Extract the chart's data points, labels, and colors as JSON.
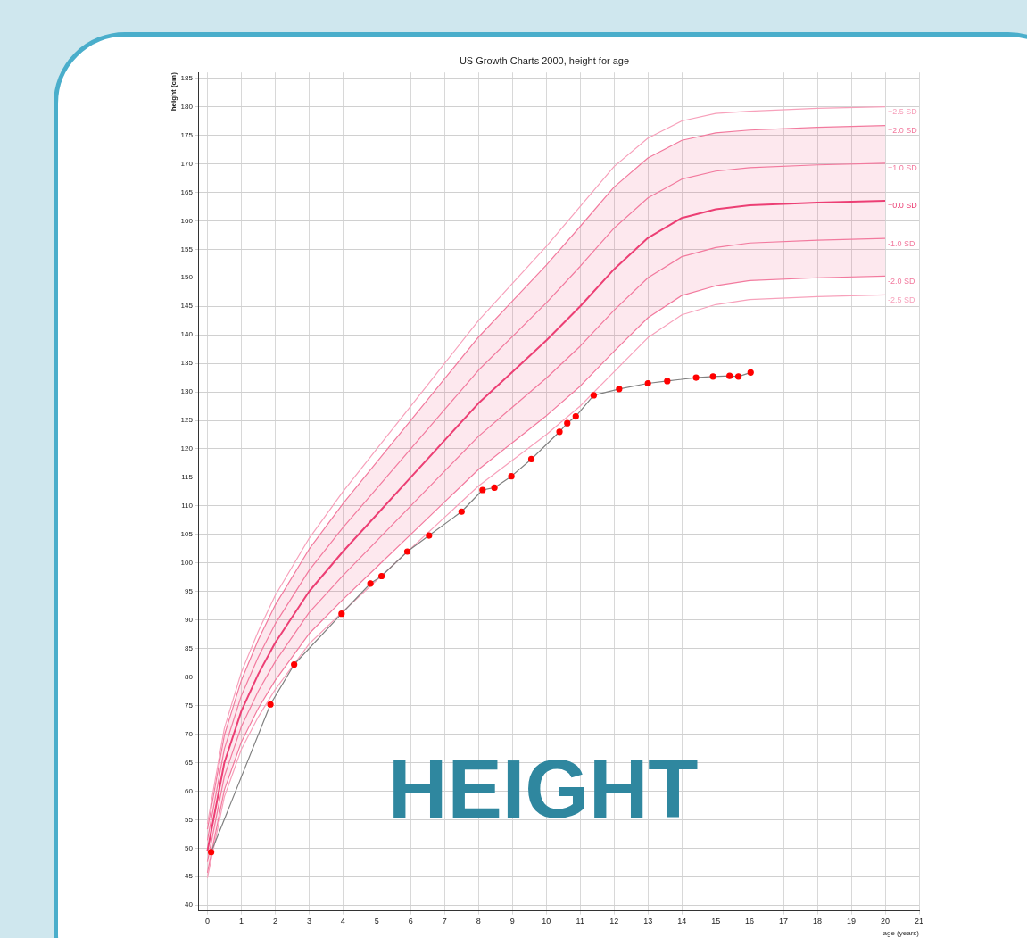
{
  "chart_data": {
    "type": "line",
    "title": "US Growth Charts 2000, height for age",
    "xlabel": "age (years)",
    "ylabel": "height (cm)",
    "annotations": [
      "HEIGHT"
    ],
    "xlim": [
      -0.25,
      21
    ],
    "ylim": [
      39,
      186
    ],
    "xticks": [
      0,
      1,
      2,
      3,
      4,
      5,
      6,
      7,
      8,
      9,
      10,
      11,
      12,
      13,
      14,
      15,
      16,
      17,
      18,
      19,
      20,
      21
    ],
    "yticks": [
      40,
      45,
      50,
      55,
      60,
      65,
      70,
      75,
      80,
      85,
      90,
      95,
      100,
      105,
      110,
      115,
      120,
      125,
      130,
      135,
      140,
      145,
      150,
      155,
      160,
      165,
      170,
      175,
      180,
      185
    ],
    "grid": true,
    "legend": false,
    "series": [
      {
        "name": "+2.5 SD",
        "color": "#f7a1bb",
        "marker": "none",
        "x": [
          0,
          0.5,
          1,
          1.5,
          2,
          3,
          4,
          5,
          6,
          7,
          8,
          9,
          10,
          11,
          12,
          13,
          14,
          15,
          16,
          18,
          20
        ],
        "values": [
          54.3,
          71,
          80.8,
          88,
          94.3,
          104.3,
          112.5,
          120,
          127.5,
          135,
          142.5,
          149,
          155.5,
          162.5,
          169.5,
          174.5,
          177.5,
          178.8,
          179.2,
          179.7,
          180
        ]
      },
      {
        "name": "+2.0 SD",
        "color": "#f27a9e",
        "marker": "none",
        "x": [
          0,
          0.5,
          1,
          1.5,
          2,
          3,
          4,
          5,
          6,
          7,
          8,
          9,
          10,
          11,
          12,
          13,
          14,
          15,
          16,
          18,
          20
        ],
        "values": [
          53.3,
          69.8,
          79.4,
          86.5,
          92.6,
          102.4,
          110.4,
          117.7,
          125,
          132.3,
          139.6,
          145.9,
          152.2,
          159,
          165.9,
          171,
          174.1,
          175.4,
          175.9,
          176.4,
          176.7
        ]
      },
      {
        "name": "+1.0 SD",
        "color": "#f27a9e",
        "marker": "none",
        "x": [
          0,
          0.5,
          1,
          1.5,
          2,
          3,
          4,
          5,
          6,
          7,
          8,
          9,
          10,
          11,
          12,
          13,
          14,
          15,
          16,
          18,
          20
        ],
        "values": [
          51.4,
          67.4,
          76.7,
          83.5,
          89.3,
          98.7,
          106.2,
          113.1,
          120,
          126.9,
          133.8,
          139.7,
          145.6,
          152,
          158.7,
          164,
          167.3,
          168.7,
          169.3,
          169.8,
          170.1
        ]
      },
      {
        "name": "+0.0 SD",
        "color": "#ec3f74",
        "marker": "none",
        "x": [
          0,
          0.5,
          1,
          1.5,
          2,
          3,
          4,
          5,
          6,
          7,
          8,
          9,
          10,
          11,
          12,
          13,
          14,
          15,
          16,
          18,
          20
        ],
        "values": [
          49.5,
          65,
          74,
          80.5,
          86,
          95,
          102,
          108.5,
          115,
          121.5,
          128,
          133.5,
          139,
          145,
          151.5,
          157,
          160.5,
          162,
          162.7,
          163.2,
          163.5
        ],
        "lower": [
          45.7,
          60.2,
          68.6,
          74.5,
          79.4,
          87.6,
          93.6,
          99.3,
          105,
          110.7,
          116.4,
          121.1,
          125.8,
          131,
          137.1,
          143,
          146.9,
          148.6,
          149.5,
          150,
          150.3
        ],
        "upper": [
          53.3,
          69.8,
          79.4,
          86.5,
          92.6,
          102.4,
          110.4,
          117.7,
          125,
          132.3,
          139.6,
          145.9,
          152.2,
          159,
          165.9,
          171,
          174.1,
          175.4,
          175.9,
          176.4,
          176.7
        ]
      },
      {
        "name": "-1.0 SD",
        "color": "#f27a9e",
        "marker": "none",
        "x": [
          0,
          0.5,
          1,
          1.5,
          2,
          3,
          4,
          5,
          6,
          7,
          8,
          9,
          10,
          11,
          12,
          13,
          14,
          15,
          16,
          18,
          20
        ],
        "values": [
          47.6,
          62.6,
          71.3,
          77.5,
          82.7,
          91.3,
          97.8,
          103.9,
          110,
          116.1,
          122.2,
          127.3,
          132.4,
          138,
          144.3,
          150,
          153.7,
          155.3,
          156.1,
          156.6,
          156.9
        ]
      },
      {
        "name": "-2.0 SD",
        "color": "#f27a9e",
        "marker": "none",
        "x": [
          0,
          0.5,
          1,
          1.5,
          2,
          3,
          4,
          5,
          6,
          7,
          8,
          9,
          10,
          11,
          12,
          13,
          14,
          15,
          16,
          18,
          20
        ],
        "values": [
          45.7,
          60.2,
          68.6,
          74.5,
          79.4,
          87.6,
          93.6,
          99.3,
          105,
          110.7,
          116.4,
          121.1,
          125.8,
          131,
          137.1,
          143,
          146.9,
          148.6,
          149.5,
          150,
          150.3
        ]
      },
      {
        "name": "-2.5 SD",
        "color": "#f7a1bb",
        "marker": "none",
        "x": [
          0,
          0.5,
          1,
          1.5,
          2,
          3,
          4,
          5,
          6,
          7,
          8,
          9,
          10,
          11,
          12,
          13,
          14,
          15,
          16,
          18,
          20
        ],
        "values": [
          44.8,
          59,
          67.3,
          73,
          77.8,
          85.8,
          91.5,
          97,
          102.5,
          108,
          113.5,
          118,
          122.5,
          127.5,
          133.5,
          139.5,
          143.5,
          145.3,
          146.2,
          146.7,
          147
        ]
      },
      {
        "color": "#808080",
        "marker": "circle",
        "colors": [
          "#ff0000",
          "#ff0000",
          "#ff0000",
          "#ff0000",
          "#ff0000",
          "#ff0000",
          "#ff0000",
          "#ff0000",
          "#ff0000",
          "#ff0000",
          "#ff0000",
          "#ff0000",
          "#ff0000",
          "#ff0000",
          "#ff0000",
          "#ff0000",
          "#ff0000",
          "#ff0000",
          "#ff0000",
          "#ff0000",
          "#ff0000",
          "#ff0000",
          "#ff0000",
          "#ff0000",
          "#ff0000"
        ],
        "x": [
          0.11,
          1.86,
          2.56,
          3.96,
          4.81,
          5.14,
          5.9,
          6.54,
          7.5,
          8.12,
          8.47,
          8.97,
          9.56,
          10.39,
          10.62,
          10.87,
          11.4,
          12.15,
          13.0,
          13.57,
          14.42,
          14.92,
          15.41,
          15.67,
          16.03
        ],
        "values": [
          49.3,
          75.2,
          82.2,
          91.1,
          96.4,
          97.7,
          102,
          104.8,
          109,
          112.8,
          113.2,
          115.2,
          118.2,
          123,
          124.5,
          125.7,
          129.4,
          130.5,
          131.5,
          131.9,
          132.5,
          132.7,
          132.8,
          132.7,
          133.4
        ]
      }
    ]
  }
}
